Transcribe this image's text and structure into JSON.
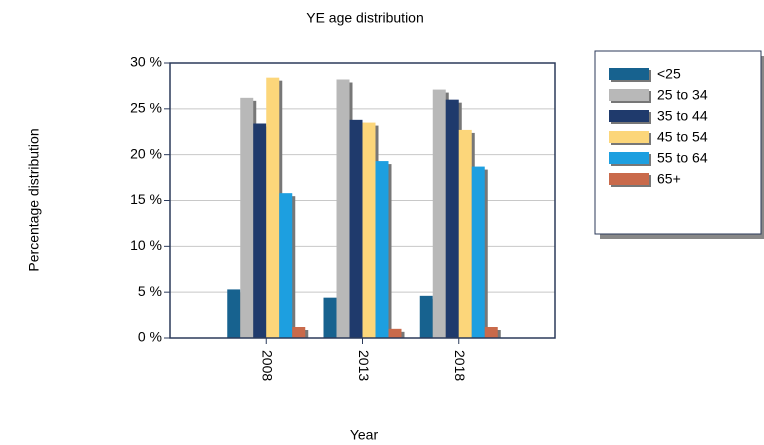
{
  "chart_data": {
    "type": "bar",
    "title": "YE age distribution",
    "x_label": "Year",
    "y_label": "Percentage distribution",
    "categories": [
      "2008",
      "2013",
      "2018"
    ],
    "series": [
      {
        "name": "<25",
        "color": "#17628f",
        "values": [
          5.3,
          4.4,
          4.6
        ]
      },
      {
        "name": "25 to 34",
        "color": "#b8b8b8",
        "values": [
          26.2,
          28.2,
          27.1
        ]
      },
      {
        "name": "35 to 44",
        "color": "#1f3a6c",
        "values": [
          23.4,
          23.8,
          26.0
        ]
      },
      {
        "name": "45 to 54",
        "color": "#fcd67a",
        "values": [
          28.4,
          23.5,
          22.7
        ]
      },
      {
        "name": "55 to 64",
        "color": "#1d9fe0",
        "values": [
          15.8,
          19.3,
          18.7
        ]
      },
      {
        "name": "65+",
        "color": "#c96a4b",
        "values": [
          1.2,
          1.0,
          1.2
        ]
      }
    ],
    "ylim": [
      0,
      30
    ],
    "yticks": [
      {
        "value": 0,
        "label": "0 %"
      },
      {
        "value": 5,
        "label": "5 %"
      },
      {
        "value": 10,
        "label": "10 %"
      },
      {
        "value": 15,
        "label": "15 %"
      },
      {
        "value": 20,
        "label": "20 %"
      },
      {
        "value": 25,
        "label": "25 %"
      },
      {
        "value": 30,
        "label": "30 %"
      }
    ],
    "grid": true,
    "legend": "right"
  }
}
